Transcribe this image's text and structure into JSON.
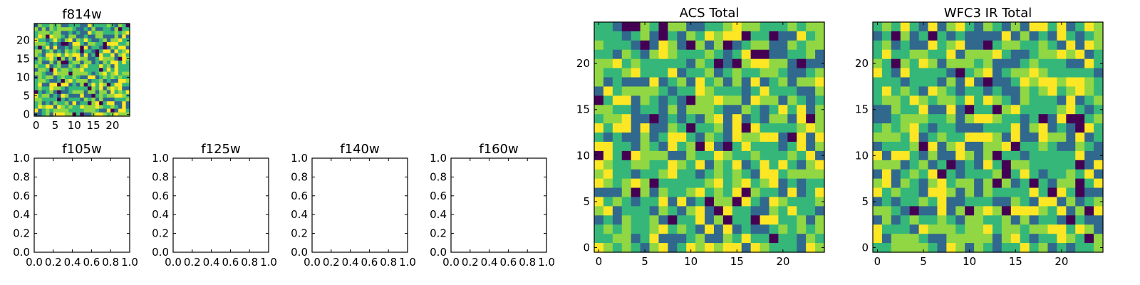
{
  "colormap": [
    "#440154",
    "#31688e",
    "#35b779",
    "#90d743",
    "#fde725"
  ],
  "chart_data": [
    {
      "id": "f814w",
      "type": "heatmap",
      "title": "f814w",
      "grid_shape": [
        25,
        25
      ],
      "xlim": [
        0,
        24
      ],
      "ylim": [
        0,
        24
      ],
      "xticks": [
        0,
        5,
        10,
        15,
        20
      ],
      "yticks": [
        0,
        5,
        10,
        15,
        20
      ],
      "colormap": "viridis",
      "values_note": "random per-pixel noise field"
    },
    {
      "id": "f105w",
      "type": "empty",
      "title": "f105w",
      "xticks": [
        "0.0",
        "0.2",
        "0.4",
        "0.6",
        "0.8",
        "1.0"
      ],
      "yticks": [
        "0.0",
        "0.2",
        "0.4",
        "0.6",
        "0.8",
        "1.0"
      ]
    },
    {
      "id": "f125w",
      "type": "empty",
      "title": "f125w",
      "xticks": [
        "0.0",
        "0.2",
        "0.4",
        "0.6",
        "0.8",
        "1.0"
      ],
      "yticks": [
        "0.0",
        "0.2",
        "0.4",
        "0.6",
        "0.8",
        "1.0"
      ]
    },
    {
      "id": "f140w",
      "type": "empty",
      "title": "f140w",
      "xticks": [
        "0.0",
        "0.2",
        "0.4",
        "0.6",
        "0.8",
        "1.0"
      ],
      "yticks": [
        "0.0",
        "0.2",
        "0.4",
        "0.6",
        "0.8",
        "1.0"
      ]
    },
    {
      "id": "f160w",
      "type": "empty",
      "title": "f160w",
      "xticks": [
        "0.0",
        "0.2",
        "0.4",
        "0.6",
        "0.8",
        "1.0"
      ],
      "yticks": [
        "0.0",
        "0.2",
        "0.4",
        "0.6",
        "0.8",
        "1.0"
      ]
    },
    {
      "id": "acs-total",
      "type": "heatmap",
      "title": "ACS Total",
      "grid_shape": [
        25,
        25
      ],
      "xlim": [
        0,
        24
      ],
      "ylim": [
        0,
        24
      ],
      "xticks": [
        0,
        5,
        10,
        15,
        20
      ],
      "yticks": [
        0,
        5,
        10,
        15,
        20
      ],
      "colormap": "viridis"
    },
    {
      "id": "wfc3-ir-total",
      "type": "heatmap",
      "title": "WFC3 IR Total",
      "grid_shape": [
        25,
        25
      ],
      "xlim": [
        0,
        24
      ],
      "ylim": [
        0,
        24
      ],
      "xticks": [
        0,
        5,
        10,
        15,
        20
      ],
      "yticks": [
        0,
        5,
        10,
        15,
        20
      ],
      "colormap": "viridis"
    }
  ]
}
